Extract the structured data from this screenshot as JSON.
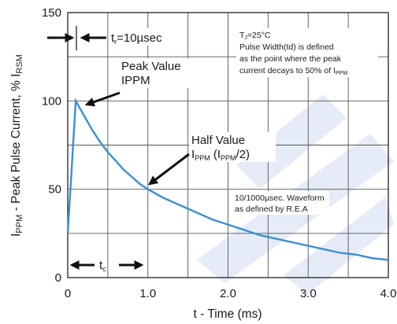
{
  "chart_data": {
    "type": "line",
    "xlabel": "t - Time (ms)",
    "ylabel_main": "I",
    "ylabel_sub": "PPM",
    "ylabel_rest": " - Peak Pulse Current, % I",
    "ylabel_sub2": "RSM",
    "xlim": [
      0,
      4.0
    ],
    "ylim": [
      0,
      150
    ],
    "grid": true,
    "x_ticks": [
      0,
      1.0,
      2.0,
      3.0,
      4.0
    ],
    "x_tick_labels": [
      "0",
      "1.0",
      "2.0",
      "3.0",
      "4.0"
    ],
    "y_ticks": [
      0,
      50,
      100,
      150
    ],
    "y_tick_labels": [
      "0",
      "50",
      "100",
      "150"
    ],
    "line_color": "#3a8fd4",
    "series": [
      {
        "x": [
          0,
          0.02,
          0.04,
          0.06,
          0.08,
          0.1,
          0.2,
          0.3,
          0.4,
          0.5,
          0.6,
          0.7,
          0.8,
          0.9,
          1.0,
          1.2,
          1.4,
          1.6,
          1.8,
          2.0,
          2.2,
          2.4,
          2.6,
          2.8,
          3.0,
          3.2,
          3.4,
          3.6,
          3.8,
          4.0
        ],
        "y": [
          25,
          40,
          55,
          70,
          85,
          100,
          92,
          84,
          77,
          71,
          66,
          61,
          57,
          53,
          50,
          45,
          41,
          37,
          33,
          30,
          27,
          24,
          22,
          20,
          18,
          16,
          14,
          13,
          11,
          10
        ]
      }
    ],
    "annotations": {
      "tr_main": "t",
      "tr_sub": "r",
      "tr_rest": "=10µsec",
      "peak_line1": "Peak Value",
      "peak_line2": "IPPM",
      "half_line1": "Half Value",
      "half_line2_main": "I",
      "half_line2_sub": "PPM",
      "half_line2_mid": " (I",
      "half_line2_sub2": "PPM",
      "half_line2_end": "/2)",
      "tj_main": "T",
      "tj_sub": "J",
      "tj_rest": "=25°C",
      "note_line1": "Pulse Width(td) is defined",
      "note_line2": "as the point where the peak",
      "note_line3_main": "current decays to 50% of I",
      "note_line3_sub": "PPM",
      "wave_line1": "10/1000µsec. Waveform",
      "wave_line2": "as defined by R.E.A",
      "tc_main": "t",
      "tc_sub": "c"
    }
  }
}
